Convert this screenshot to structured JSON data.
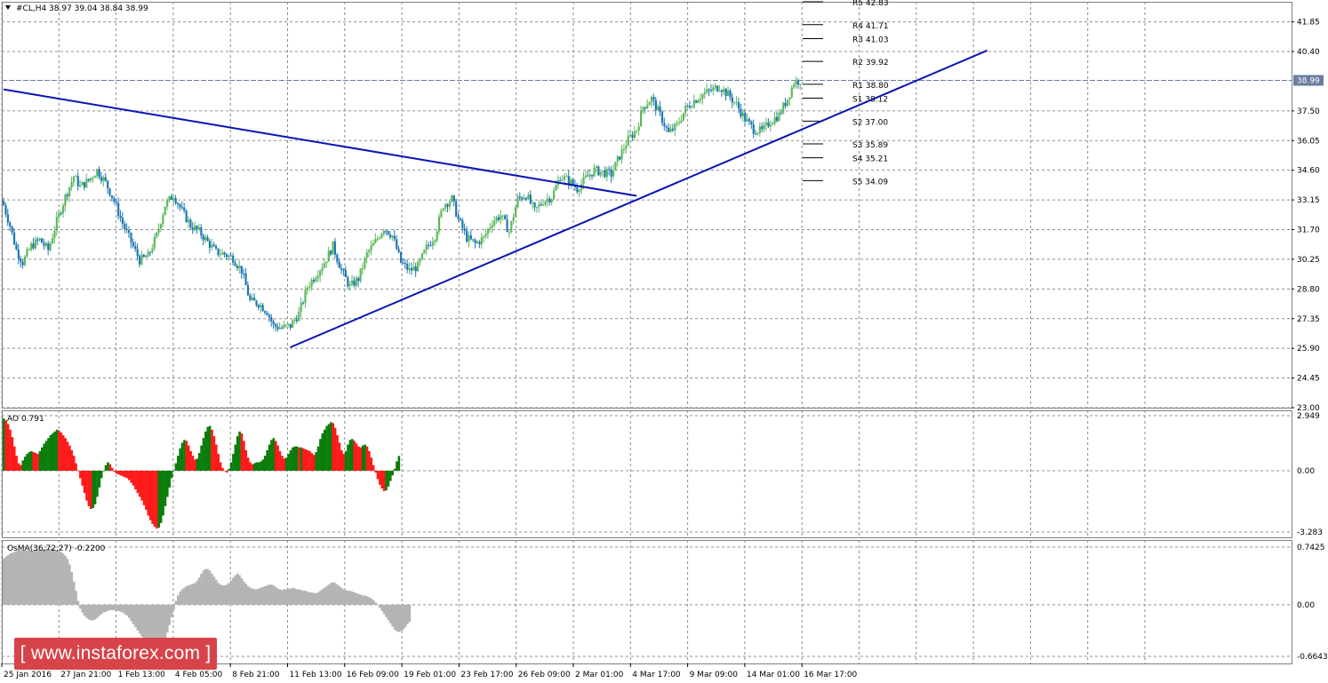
{
  "chart_data": [
    {
      "type": "candlestick",
      "title": "#CL,H4  38.97 39.04 38.84 38.99",
      "symbol": "#CL,H4",
      "ohlc_last": {
        "open": 38.97,
        "high": 39.04,
        "low": 38.84,
        "close": 38.99
      },
      "ylim": [
        23.0,
        42.83
      ],
      "y_ticks": [
        "41.85",
        "40.40",
        "38.99",
        "37.50",
        "36.05",
        "34.60",
        "33.15",
        "31.70",
        "30.25",
        "28.80",
        "27.35",
        "25.90",
        "24.45",
        "23.00"
      ],
      "y_tick_values": [
        41.85,
        40.4,
        38.99,
        37.5,
        36.05,
        34.6,
        33.15,
        31.7,
        30.25,
        28.8,
        27.35,
        25.9,
        24.45,
        23.0
      ],
      "current_price": 38.99,
      "up_color": "#5cb85c",
      "down_color": "#1f77b4",
      "pivot_levels": [
        {
          "name": "R5",
          "value": 42.83,
          "label": "R5 42.83"
        },
        {
          "name": "R4",
          "value": 41.71,
          "label": "R4 41.71"
        },
        {
          "name": "R3",
          "value": 41.03,
          "label": "R3 41.03"
        },
        {
          "name": "R2",
          "value": 39.92,
          "label": "R2 39.92"
        },
        {
          "name": "R1",
          "value": 38.8,
          "label": "R1 38.80"
        },
        {
          "name": "S1",
          "value": 38.12,
          "label": "S1 38.12"
        },
        {
          "name": "S2",
          "value": 37.0,
          "label": "S2 37.00"
        },
        {
          "name": "S3",
          "value": 35.89,
          "label": "S3 35.89"
        },
        {
          "name": "S4",
          "value": 35.21,
          "label": "S4 35.21"
        },
        {
          "name": "S5",
          "value": 34.09,
          "label": "S5 34.09"
        }
      ],
      "trendlines": [
        {
          "name": "descending",
          "points": [
            [
              0,
              38.55
            ],
            [
              298,
              33.35
            ]
          ]
        },
        {
          "name": "ascending",
          "points": [
            [
              135,
              25.95
            ],
            [
              463,
              40.45
            ]
          ]
        }
      ],
      "price_path": [
        [
          0,
          32.9
        ],
        [
          3,
          31.9
        ],
        [
          6,
          30.7
        ],
        [
          9,
          30.1
        ],
        [
          13,
          30.9
        ],
        [
          17,
          31.2
        ],
        [
          21,
          30.7
        ],
        [
          25,
          32.1
        ],
        [
          29,
          33.3
        ],
        [
          33,
          34.3
        ],
        [
          36,
          33.8
        ],
        [
          40,
          34.1
        ],
        [
          44,
          34.6
        ],
        [
          48,
          34.0
        ],
        [
          52,
          33.1
        ],
        [
          56,
          32.0
        ],
        [
          60,
          31.1
        ],
        [
          64,
          30.2
        ],
        [
          68,
          30.4
        ],
        [
          72,
          31.4
        ],
        [
          76,
          32.9
        ],
        [
          80,
          33.4
        ],
        [
          84,
          32.6
        ],
        [
          88,
          31.9
        ],
        [
          92,
          31.6
        ],
        [
          96,
          31.1
        ],
        [
          100,
          30.6
        ],
        [
          104,
          30.5
        ],
        [
          108,
          30.3
        ],
        [
          112,
          29.7
        ],
        [
          116,
          28.2
        ],
        [
          120,
          28.1
        ],
        [
          124,
          27.7
        ],
        [
          127,
          27.0
        ],
        [
          131,
          26.9
        ],
        [
          135,
          27.0
        ],
        [
          139,
          27.6
        ],
        [
          143,
          28.9
        ],
        [
          147,
          29.5
        ],
        [
          151,
          30.1
        ],
        [
          155,
          30.9
        ],
        [
          159,
          29.7
        ],
        [
          163,
          28.9
        ],
        [
          167,
          29.3
        ],
        [
          171,
          30.5
        ],
        [
          175,
          31.1
        ],
        [
          179,
          31.8
        ],
        [
          183,
          31.4
        ],
        [
          187,
          30.1
        ],
        [
          191,
          29.7
        ],
        [
          195,
          29.9
        ],
        [
          199,
          30.8
        ],
        [
          203,
          31.4
        ],
        [
          207,
          32.9
        ],
        [
          211,
          33.2
        ],
        [
          214,
          32.2
        ],
        [
          218,
          31.3
        ],
        [
          222,
          31.0
        ],
        [
          226,
          31.3
        ],
        [
          230,
          32.1
        ],
        [
          234,
          32.4
        ],
        [
          238,
          31.6
        ],
        [
          242,
          33.2
        ],
        [
          246,
          33.4
        ],
        [
          250,
          32.6
        ],
        [
          254,
          33.1
        ],
        [
          258,
          33.3
        ],
        [
          262,
          34.3
        ],
        [
          266,
          34.1
        ],
        [
          270,
          33.7
        ],
        [
          274,
          34.2
        ],
        [
          278,
          34.6
        ],
        [
          282,
          34.5
        ],
        [
          286,
          34.4
        ],
        [
          290,
          35.3
        ],
        [
          294,
          36.1
        ],
        [
          298,
          36.6
        ],
        [
          301,
          37.7
        ],
        [
          305,
          38.1
        ],
        [
          309,
          37.3
        ],
        [
          313,
          36.4
        ],
        [
          317,
          36.8
        ],
        [
          321,
          37.6
        ],
        [
          325,
          38.0
        ],
        [
          329,
          38.3
        ],
        [
          333,
          38.5
        ],
        [
          337,
          38.7
        ],
        [
          341,
          38.3
        ],
        [
          345,
          37.8
        ],
        [
          349,
          37.1
        ],
        [
          353,
          36.6
        ],
        [
          357,
          36.5
        ],
        [
          361,
          37.0
        ],
        [
          365,
          37.3
        ],
        [
          369,
          38.1
        ],
        [
          372,
          38.9
        ],
        [
          375,
          38.99
        ]
      ]
    },
    {
      "type": "bar",
      "title": "AO 0.791",
      "indicator": "AO",
      "current_value": 0.791,
      "ylim": [
        -3.283,
        2.949
      ],
      "y_ticks": [
        "2.949",
        "0.00",
        "-3.283"
      ],
      "y_tick_values": [
        2.949,
        0.0,
        -3.283
      ],
      "rising_color": "#0b7d0b",
      "falling_color": "#ff1a1a",
      "values": [
        2.8,
        2.7,
        2.5,
        2.2,
        1.8,
        1.3,
        0.8,
        0.4,
        0.3,
        0.55,
        0.75,
        0.9,
        1.0,
        1.05,
        1.0,
        0.95,
        0.9,
        1.05,
        1.25,
        1.45,
        1.6,
        1.75,
        1.9,
        2.0,
        2.1,
        2.2,
        2.15,
        2.05,
        1.9,
        1.75,
        1.55,
        1.35,
        1.1,
        0.8,
        0.4,
        0.0,
        -0.4,
        -0.8,
        -1.2,
        -1.6,
        -1.9,
        -2.05,
        -2.0,
        -1.8,
        -1.4,
        -0.9,
        -0.4,
        0.0,
        0.3,
        0.45,
        0.35,
        0.15,
        -0.05,
        -0.15,
        -0.2,
        -0.25,
        -0.3,
        -0.35,
        -0.4,
        -0.5,
        -0.65,
        -0.8,
        -1.0,
        -1.2,
        -1.4,
        -1.6,
        -1.85,
        -2.1,
        -2.4,
        -2.65,
        -2.85,
        -3.0,
        -3.1,
        -3.05,
        -2.8,
        -2.4,
        -1.9,
        -1.4,
        -0.9,
        -0.4,
        0.0,
        0.4,
        0.8,
        1.2,
        1.5,
        1.65,
        1.6,
        1.35,
        1.05,
        0.8,
        0.6,
        0.65,
        0.95,
        1.35,
        1.75,
        2.1,
        2.35,
        2.4,
        2.2,
        1.85,
        1.4,
        0.9,
        0.45,
        0.15,
        0.0,
        -0.1,
        0.1,
        0.45,
        0.9,
        1.4,
        1.85,
        2.1,
        2.0,
        1.6,
        1.1,
        0.7,
        0.45,
        0.35,
        0.4,
        0.45,
        0.45,
        0.5,
        0.6,
        0.8,
        1.1,
        1.4,
        1.65,
        1.75,
        1.6,
        1.35,
        1.05,
        0.8,
        0.65,
        0.7,
        0.9,
        1.1,
        1.25,
        1.3,
        1.3,
        1.25,
        1.25,
        1.2,
        1.15,
        1.1,
        1.05,
        0.95,
        0.85,
        1.0,
        1.3,
        1.7,
        2.0,
        2.2,
        2.4,
        2.5,
        2.6,
        2.55,
        2.3,
        1.9,
        1.5,
        1.1,
        0.9,
        1.05,
        1.4,
        1.65,
        1.7,
        1.6,
        1.45,
        1.3,
        1.25,
        1.35,
        1.4,
        1.3,
        1.05,
        0.7,
        0.3,
        -0.1,
        -0.45,
        -0.75,
        -0.95,
        -1.1,
        -1.05,
        -0.85,
        -0.55,
        -0.25,
        0.1,
        0.5,
        0.791
      ]
    },
    {
      "type": "bar",
      "title": "OsMA(36,72,27) -0.2200",
      "indicator": "OsMA",
      "params": [
        36,
        72,
        27
      ],
      "current_value": -0.22,
      "ylim": [
        -0.6643,
        0.7425
      ],
      "y_ticks": [
        "0.7425",
        "0.00",
        "-0.6643"
      ],
      "y_tick_values": [
        0.7425,
        0.0,
        -0.6643
      ],
      "bar_color": "#b4b4b4",
      "values": [
        0.6,
        0.62,
        0.64,
        0.66,
        0.67,
        0.68,
        0.69,
        0.7,
        0.7,
        0.7,
        0.7,
        0.7,
        0.7,
        0.7,
        0.7,
        0.71,
        0.71,
        0.71,
        0.71,
        0.72,
        0.72,
        0.72,
        0.72,
        0.72,
        0.71,
        0.7,
        0.69,
        0.68,
        0.66,
        0.63,
        0.59,
        0.52,
        0.42,
        0.3,
        0.18,
        0.05,
        -0.05,
        -0.1,
        -0.14,
        -0.17,
        -0.19,
        -0.2,
        -0.2,
        -0.19,
        -0.17,
        -0.14,
        -0.12,
        -0.1,
        -0.09,
        -0.08,
        -0.07,
        -0.07,
        -0.07,
        -0.08,
        -0.08,
        -0.09,
        -0.1,
        -0.12,
        -0.14,
        -0.17,
        -0.21,
        -0.25,
        -0.29,
        -0.33,
        -0.37,
        -0.41,
        -0.45,
        -0.48,
        -0.52,
        -0.55,
        -0.58,
        -0.6,
        -0.61,
        -0.61,
        -0.59,
        -0.54,
        -0.46,
        -0.36,
        -0.26,
        -0.16,
        -0.06,
        0.05,
        0.12,
        0.17,
        0.2,
        0.22,
        0.24,
        0.25,
        0.26,
        0.27,
        0.28,
        0.31,
        0.35,
        0.4,
        0.44,
        0.46,
        0.46,
        0.44,
        0.4,
        0.36,
        0.32,
        0.28,
        0.26,
        0.25,
        0.25,
        0.26,
        0.28,
        0.31,
        0.35,
        0.38,
        0.4,
        0.38,
        0.34,
        0.3,
        0.27,
        0.24,
        0.22,
        0.21,
        0.2,
        0.2,
        0.21,
        0.22,
        0.23,
        0.24,
        0.25,
        0.26,
        0.26,
        0.25,
        0.23,
        0.21,
        0.2,
        0.19,
        0.2,
        0.2,
        0.21,
        0.21,
        0.22,
        0.21,
        0.2,
        0.2,
        0.19,
        0.18,
        0.18,
        0.17,
        0.16,
        0.16,
        0.15,
        0.15,
        0.16,
        0.18,
        0.2,
        0.22,
        0.24,
        0.26,
        0.28,
        0.29,
        0.28,
        0.26,
        0.24,
        0.22,
        0.2,
        0.19,
        0.18,
        0.18,
        0.17,
        0.16,
        0.15,
        0.14,
        0.13,
        0.12,
        0.12,
        0.11,
        0.1,
        0.08,
        0.06,
        0.03,
        0.0,
        -0.04,
        -0.08,
        -0.12,
        -0.16,
        -0.2,
        -0.24,
        -0.28,
        -0.32,
        -0.34,
        -0.35,
        -0.34,
        -0.32,
        -0.29,
        -0.25,
        -0.22
      ]
    }
  ],
  "x_axis": {
    "labels": [
      "25 Jan 2016",
      "27 Jan 21:00",
      "1 Feb 13:00",
      "4 Feb 05:00",
      "8 Feb 21:00",
      "11 Feb 13:00",
      "16 Feb 09:00",
      "19 Feb 01:00",
      "23 Feb 17:00",
      "26 Feb 09:00",
      "2 Mar 01:00",
      "4 Mar 17:00",
      "9 Mar 09:00",
      "14 Mar 01:00",
      "16 Mar 17:00"
    ]
  },
  "watermark": {
    "text": "[ www.instaforex.com ]"
  },
  "colors": {
    "trendline": "#0a14b4",
    "grid": "#8c8c8c",
    "price_line": "#6a7ca0"
  }
}
